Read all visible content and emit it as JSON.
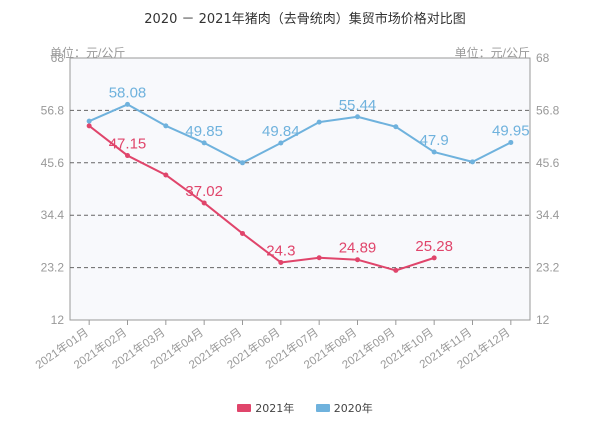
{
  "chart_data": {
    "type": "line",
    "title": "2020 － 2021年猪肉（去骨统肉）集贸市场价格对比图",
    "unit_label": "单位：元/公斤",
    "categories": [
      "2021年01月",
      "2021年02月",
      "2021年03月",
      "2021年04月",
      "2021年05月",
      "2021年06月",
      "2021年07月",
      "2021年08月",
      "2021年09月",
      "2021年10月",
      "2021年11月",
      "2021年12月"
    ],
    "y_ticks": [
      12,
      23.2,
      34.4,
      45.6,
      56.8,
      68
    ],
    "y_tick_labels": [
      "12",
      "23.2",
      "34.4",
      "45.6",
      "56.8",
      "68"
    ],
    "ylim": [
      12,
      68
    ],
    "grid": true,
    "legend_position": "bottom",
    "series": [
      {
        "name": "2021年",
        "color": "#e0456b",
        "values": [
          53.5,
          47.15,
          43.0,
          37.02,
          30.5,
          24.3,
          25.3,
          24.89,
          22.6,
          25.28,
          null,
          null
        ],
        "labels": [
          null,
          "47.15",
          null,
          "37.02",
          null,
          "24.3",
          null,
          "24.89",
          null,
          "25.28",
          null,
          null
        ]
      },
      {
        "name": "2020年",
        "color": "#6fb2dd",
        "values": [
          54.5,
          58.08,
          53.5,
          49.85,
          45.6,
          49.84,
          54.3,
          55.44,
          53.3,
          47.9,
          45.8,
          49.95
        ],
        "labels": [
          null,
          "58.08",
          null,
          "49.85",
          null,
          "49.84",
          null,
          "55.44",
          null,
          "47.9",
          null,
          "49.95"
        ]
      }
    ]
  }
}
